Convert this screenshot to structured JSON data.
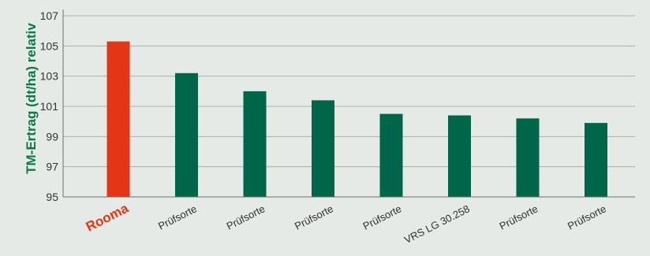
{
  "chart_data": {
    "type": "bar",
    "ylabel": "TM-Ertrag (dt/ha) relativ",
    "xlabel": "",
    "ylim": [
      95,
      107
    ],
    "yticks": [
      95,
      97,
      99,
      101,
      103,
      105,
      107
    ],
    "grid": true,
    "categories": [
      "Rooma",
      "Prüfsorte",
      "Prüfsorte",
      "Prüfsorte",
      "Prüfsorte",
      "VRS LG 30.258",
      "Prüfsorte",
      "Prüfsorte"
    ],
    "values": [
      105.3,
      103.2,
      102.0,
      101.4,
      100.5,
      100.4,
      100.2,
      99.9
    ],
    "highlight_index": 0
  },
  "colors": {
    "background": "#e6eae6",
    "bar_default": "#00664a",
    "bar_highlight": "#e53517",
    "ylabel": "#0a7a44",
    "grid": "#a9b1ad",
    "axis": "#6f6f6f"
  }
}
